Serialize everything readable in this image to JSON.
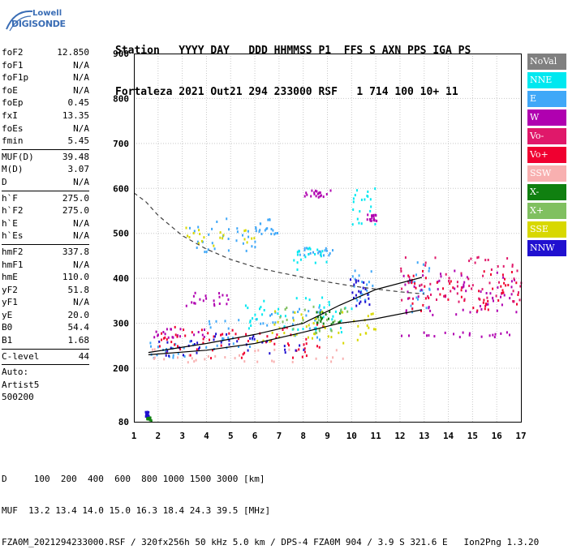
{
  "logo": {
    "line1": "Lowell",
    "line2": "DIGISONDE"
  },
  "header": {
    "row1": "Station   YYYY DAY   DDD HHMMSS P1  FFS S AXN PPS IGA PS",
    "row2": "Fortaleza 2021 Out21 294 233000 RSF   1 714 100 10+ 11"
  },
  "params": [
    {
      "label": "foF2",
      "value": "12.850"
    },
    {
      "label": "foF1",
      "value": "N/A"
    },
    {
      "label": "foF1p",
      "value": "N/A"
    },
    {
      "label": "foE",
      "value": "N/A"
    },
    {
      "label": "foEp",
      "value": "0.45"
    },
    {
      "label": "fxI",
      "value": "13.35"
    },
    {
      "label": "foEs",
      "value": "N/A"
    },
    {
      "label": "fmin",
      "value": "5.45"
    },
    {
      "sep": true
    },
    {
      "label": "MUF(D)",
      "value": "39.48"
    },
    {
      "label": "M(D)",
      "value": "3.07"
    },
    {
      "label": "D",
      "value": "N/A"
    },
    {
      "sep": true
    },
    {
      "label": "h`F",
      "value": "275.0"
    },
    {
      "label": "h`F2",
      "value": "275.0"
    },
    {
      "label": "h`E",
      "value": "N/A"
    },
    {
      "label": "h`Es",
      "value": "N/A"
    },
    {
      "sep": true
    },
    {
      "label": "hmF2",
      "value": "337.8"
    },
    {
      "label": "hmF1",
      "value": "N/A"
    },
    {
      "label": "hmE",
      "value": "110.0"
    },
    {
      "label": "yF2",
      "value": "51.8"
    },
    {
      "label": "yF1",
      "value": "N/A"
    },
    {
      "label": "yE",
      "value": "20.0"
    },
    {
      "label": "B0",
      "value": "54.4"
    },
    {
      "label": "B1",
      "value": "1.68"
    },
    {
      "sep": true
    },
    {
      "label": "C-level",
      "value": "44"
    },
    {
      "sep": true
    },
    {
      "label": "Auto:",
      "value": ""
    },
    {
      "label": "Artist5",
      "value": ""
    },
    {
      "label": "500200",
      "value": ""
    }
  ],
  "legend": [
    {
      "label": "NoVal",
      "bg": "#808080",
      "fg": "#ffffff"
    },
    {
      "label": "NNE",
      "bg": "#00e8f0",
      "fg": "#ffffff"
    },
    {
      "label": "E",
      "bg": "#40a8f8",
      "fg": "#ffffff"
    },
    {
      "label": "W",
      "bg": "#b000b0",
      "fg": "#ffffff"
    },
    {
      "label": "Vo-",
      "bg": "#e0186a",
      "fg": "#ffffff"
    },
    {
      "label": "Vo+",
      "bg": "#f00030",
      "fg": "#ffffff"
    },
    {
      "label": "SSW",
      "bg": "#f8b0b0",
      "fg": "#ffffff"
    },
    {
      "label": "X-",
      "bg": "#108010",
      "fg": "#ffffff"
    },
    {
      "label": "X+",
      "bg": "#80c060",
      "fg": "#ffffff"
    },
    {
      "label": "SSE",
      "bg": "#d8d800",
      "fg": "#ffffff"
    },
    {
      "label": "NNW",
      "bg": "#2010d0",
      "fg": "#ffffff"
    }
  ],
  "footer": {
    "line1": "D     100  200  400  600  800 1000 1500 3000 [km]",
    "line2": "MUF  13.2 13.4 14.0 15.0 16.3 18.4 24.3 39.5 [MHz]",
    "line3": "FZA0M_2021294233000.RSF / 320fx256h 50 kHz 5.0 km / DPS-4 FZA0M 904 / 3.9 S 321.6 E   Ion2Png 1.3.20"
  },
  "chart_data": {
    "type": "scatter",
    "title": "",
    "xlabel": "",
    "ylabel": "",
    "xlim": [
      1,
      17
    ],
    "ylim": [
      80,
      900
    ],
    "xticks": [
      1,
      2,
      3,
      4,
      5,
      6,
      7,
      8,
      9,
      10,
      11,
      12,
      13,
      14,
      15,
      16,
      17
    ],
    "yticks": [
      80,
      200,
      300,
      400,
      500,
      600,
      700,
      800,
      900
    ],
    "grid": true,
    "legend_position": "right",
    "series": [
      {
        "name": "E",
        "color": "#40a8f8",
        "clusters": [
          {
            "x": [
              1.6,
              3.5
            ],
            "y": [
              225,
              265
            ]
          },
          {
            "x": [
              3.5,
              6.0
            ],
            "y": [
              245,
              310
            ]
          },
          {
            "x": [
              6.0,
              9.0
            ],
            "y": [
              265,
              340
            ]
          },
          {
            "x": [
              3.0,
              6.0
            ],
            "y": [
              460,
              540
            ]
          },
          {
            "x": [
              6.0,
              7.0
            ],
            "y": [
              500,
              540
            ]
          },
          {
            "x": [
              7.6,
              9.3
            ],
            "y": [
              450,
              470
            ]
          },
          {
            "x": [
              10.0,
              11.0
            ],
            "y": [
              350,
              420
            ]
          },
          {
            "x": [
              12.3,
              13.2
            ],
            "y": [
              320,
              440
            ]
          }
        ]
      },
      {
        "name": "SSW",
        "color": "#f8b0b0",
        "clusters": [
          {
            "x": [
              1.6,
              10.0
            ],
            "y": [
              215,
              245
            ]
          }
        ]
      },
      {
        "name": "W",
        "color": "#b000b0",
        "clusters": [
          {
            "x": [
              1.8,
              4.0
            ],
            "y": [
              270,
              290
            ]
          },
          {
            "x": [
              3.0,
              5.0
            ],
            "y": [
              340,
              370
            ]
          },
          {
            "x": [
              12.0,
              16.8
            ],
            "y": [
              270,
              285
            ]
          },
          {
            "x": [
              12.0,
              17.0
            ],
            "y": [
              320,
              420
            ]
          },
          {
            "x": [
              10.6,
              11.0
            ],
            "y": [
              530,
              545
            ]
          },
          {
            "x": [
              8.0,
              9.2
            ],
            "y": [
              580,
              600
            ]
          }
        ]
      },
      {
        "name": "Vo+",
        "color": "#f00030",
        "clusters": [
          {
            "x": [
              2.0,
              9.0
            ],
            "y": [
              225,
              300
            ]
          },
          {
            "x": [
              12.2,
              17.0
            ],
            "y": [
              330,
              420
            ]
          }
        ]
      },
      {
        "name": "NNE",
        "color": "#00e8f0",
        "clusters": [
          {
            "x": [
              5.5,
              10.0
            ],
            "y": [
              280,
              360
            ]
          },
          {
            "x": [
              10.0,
              11.0
            ],
            "y": [
              520,
              610
            ]
          },
          {
            "x": [
              7.5,
              9.0
            ],
            "y": [
              420,
              480
            ]
          }
        ]
      },
      {
        "name": "SSE",
        "color": "#d8d800",
        "clusters": [
          {
            "x": [
              6.0,
              11.0
            ],
            "y": [
              255,
              330
            ]
          },
          {
            "x": [
              3.0,
              6.0
            ],
            "y": [
              470,
              520
            ]
          }
        ]
      },
      {
        "name": "NNW",
        "color": "#2010d0",
        "clusters": [
          {
            "x": [
              2.0,
              8.0
            ],
            "y": [
              230,
              280
            ]
          },
          {
            "x": [
              9.9,
              10.8
            ],
            "y": [
              340,
              400
            ]
          },
          {
            "x": [
              1.4,
              1.6
            ],
            "y": [
              90,
              105
            ]
          }
        ]
      },
      {
        "name": "X-",
        "color": "#108010",
        "clusters": [
          {
            "x": [
              1.5,
              1.7
            ],
            "y": [
              85,
              92
            ]
          },
          {
            "x": [
              8.5,
              9.5
            ],
            "y": [
              300,
              330
            ]
          }
        ]
      },
      {
        "name": "X+",
        "color": "#80c060",
        "clusters": [
          {
            "x": [
              7.0,
              10.0
            ],
            "y": [
              280,
              340
            ]
          }
        ]
      },
      {
        "name": "Vo-",
        "color": "#e0186a",
        "clusters": [
          {
            "x": [
              12.0,
              17.0
            ],
            "y": [
              350,
              450
            ]
          }
        ]
      }
    ],
    "curves": [
      {
        "style": "solid",
        "points": [
          [
            1.6,
            235
          ],
          [
            4.0,
            255
          ],
          [
            6.0,
            275
          ],
          [
            8.0,
            300
          ],
          [
            9.5,
            340
          ],
          [
            11.0,
            375
          ],
          [
            12.9,
            402
          ]
        ]
      },
      {
        "style": "solid",
        "points": [
          [
            1.6,
            230
          ],
          [
            4.0,
            240
          ],
          [
            6.0,
            255
          ],
          [
            8.0,
            280
          ],
          [
            9.5,
            300
          ],
          [
            11.0,
            310
          ],
          [
            12.9,
            330
          ]
        ]
      },
      {
        "style": "dashed",
        "points": [
          [
            1.0,
            590
          ],
          [
            1.5,
            570
          ],
          [
            2.0,
            540
          ],
          [
            3.0,
            495
          ],
          [
            4.0,
            465
          ],
          [
            5.0,
            442
          ],
          [
            6.0,
            425
          ],
          [
            7.0,
            413
          ],
          [
            8.0,
            402
          ],
          [
            9.0,
            392
          ],
          [
            10.0,
            383
          ],
          [
            11.0,
            376
          ],
          [
            12.0,
            370
          ],
          [
            13.0,
            365
          ]
        ]
      }
    ]
  }
}
